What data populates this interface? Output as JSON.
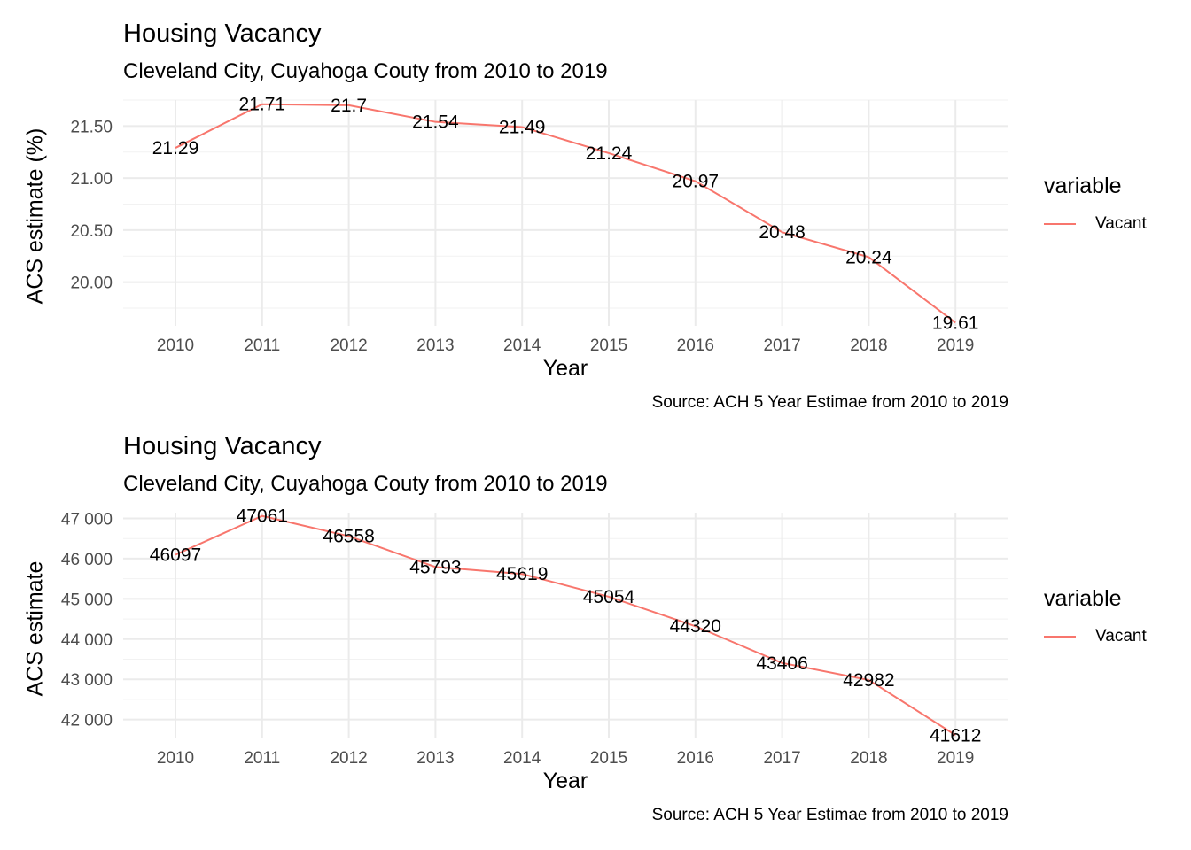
{
  "chart_data": [
    {
      "type": "line",
      "title": "Housing Vacancy",
      "subtitle": "Cleveland City, Cuyahoga Couty from 2010 to 2019",
      "caption": "Source: ACH 5 Year Estimae from 2010 to 2019",
      "xlabel": "Year",
      "ylabel": "ACS estimate (%)",
      "x": [
        2010,
        2011,
        2012,
        2013,
        2014,
        2015,
        2016,
        2017,
        2018,
        2019
      ],
      "x_tick_labels": [
        "2010",
        "2011",
        "2012",
        "2013",
        "2014",
        "2015",
        "2016",
        "2017",
        "2018",
        "2019"
      ],
      "series": [
        {
          "name": "Vacant",
          "color": "#F8766D",
          "values": [
            21.29,
            21.71,
            21.7,
            21.54,
            21.49,
            21.24,
            20.97,
            20.48,
            20.24,
            19.61
          ],
          "labels": [
            "21.29",
            "21.71",
            "21.7",
            "21.54",
            "21.49",
            "21.24",
            "20.97",
            "20.48",
            "20.24",
            "19.61"
          ]
        }
      ],
      "ylim": [
        19.58,
        21.75
      ],
      "y_ticks": [
        20.0,
        20.5,
        21.0,
        21.5
      ],
      "y_tick_labels": [
        "20.00",
        "20.50",
        "21.00",
        "21.50"
      ],
      "grid": true,
      "legend_title": "variable",
      "legend_position": "right"
    },
    {
      "type": "line",
      "title": "Housing Vacancy",
      "subtitle": "Cleveland City, Cuyahoga Couty from 2010 to 2019",
      "caption": "Source: ACH 5 Year Estimae from 2010 to 2019",
      "xlabel": "Year",
      "ylabel": "ACS estimate",
      "x": [
        2010,
        2011,
        2012,
        2013,
        2014,
        2015,
        2016,
        2017,
        2018,
        2019
      ],
      "x_tick_labels": [
        "2010",
        "2011",
        "2012",
        "2013",
        "2014",
        "2015",
        "2016",
        "2017",
        "2018",
        "2019"
      ],
      "series": [
        {
          "name": "Vacant",
          "color": "#F8766D",
          "values": [
            46097,
            47061,
            46558,
            45793,
            45619,
            45054,
            44320,
            43406,
            42982,
            41612
          ],
          "labels": [
            "46097",
            "47061",
            "46558",
            "45793",
            "45619",
            "45054",
            "44320",
            "43406",
            "42982",
            "41612"
          ]
        }
      ],
      "ylim": [
        41530,
        47143
      ],
      "y_ticks": [
        42000,
        43000,
        44000,
        45000,
        46000,
        47000
      ],
      "y_tick_labels": [
        "42 000",
        "43 000",
        "44 000",
        "45 000",
        "46 000",
        "47 000"
      ],
      "grid": true,
      "legend_title": "variable",
      "legend_position": "right"
    }
  ]
}
